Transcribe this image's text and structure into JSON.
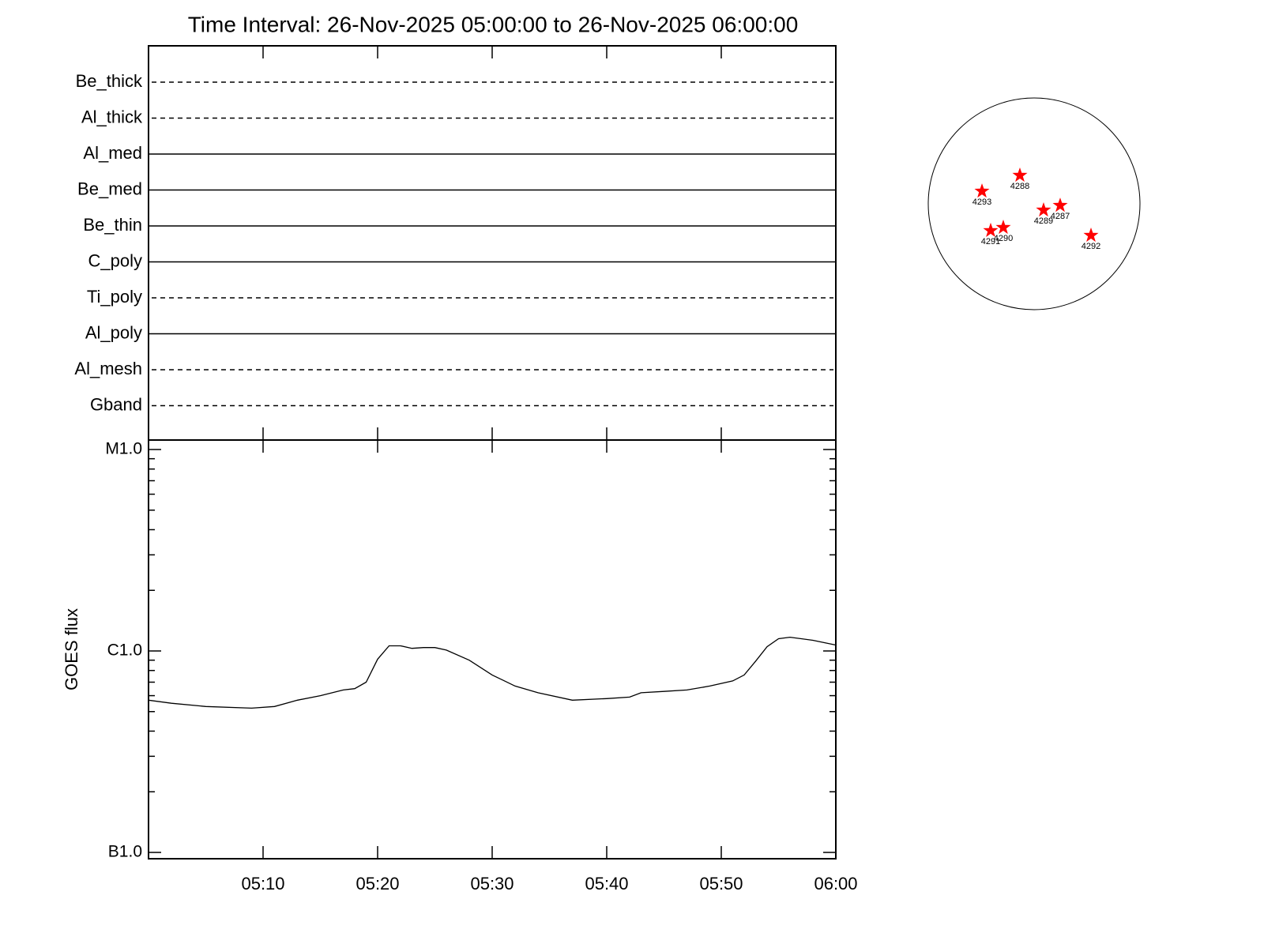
{
  "chart_data": [
    {
      "type": "timeline",
      "title": "Time Interval: 26-Nov-2025 05:00:00 to 26-Nov-2025 06:00:00",
      "categories": [
        "Be_thick",
        "Al_thick",
        "Al_med",
        "Be_med",
        "Be_thin",
        "C_poly",
        "Ti_poly",
        "Al_poly",
        "Al_mesh",
        "Gband"
      ],
      "styles": [
        "dashed",
        "dashed",
        "solid",
        "solid",
        "solid",
        "solid",
        "dashed",
        "solid",
        "dashed",
        "dashed"
      ]
    },
    {
      "type": "line",
      "ylabel": "GOES flux",
      "log": true,
      "color": "#000000",
      "x": [
        "05:00",
        "05:02",
        "05:05",
        "05:09",
        "05:11",
        "05:13",
        "05:15",
        "05:17",
        "05:18",
        "05:19",
        "05:20",
        "05:21",
        "05:22",
        "05:23",
        "05:24",
        "05:25",
        "05:26",
        "05:28",
        "05:30",
        "05:32",
        "05:34",
        "05:37",
        "05:40",
        "05:42",
        "05:43",
        "05:45",
        "05:47",
        "05:49",
        "05:51",
        "05:52",
        "05:53",
        "05:54",
        "05:55",
        "05:56",
        "05:58",
        "06:00"
      ],
      "values": [
        5.7e-07,
        5.5e-07,
        5.3e-07,
        5.2e-07,
        5.3e-07,
        5.7e-07,
        6e-07,
        6.4e-07,
        6.5e-07,
        7e-07,
        9.1e-07,
        1.06e-06,
        1.06e-06,
        1.03e-06,
        1.04e-06,
        1.04e-06,
        1.01e-06,
        9e-07,
        7.6e-07,
        6.7e-07,
        6.2e-07,
        5.7e-07,
        5.8e-07,
        5.9e-07,
        6.2e-07,
        6.3e-07,
        6.4e-07,
        6.7e-07,
        7.1e-07,
        7.6e-07,
        8.9e-07,
        1.05e-06,
        1.15e-06,
        1.17e-06,
        1.13e-06,
        1.07e-06
      ],
      "xlim": [
        "05:00",
        "06:00"
      ],
      "xticks": [
        "05:10",
        "05:20",
        "05:30",
        "05:40",
        "05:50",
        "06:00"
      ],
      "ylim": [
        1e-07,
        1e-05
      ],
      "yticks": [
        {
          "value": 1e-07,
          "label": "B1.0"
        },
        {
          "value": 1e-06,
          "label": "C1.0"
        },
        {
          "value": 1e-05,
          "label": "M1.0"
        }
      ],
      "yminor": [
        2e-07,
        3e-07,
        4e-07,
        5e-07,
        6e-07,
        7e-07,
        8e-07,
        9e-07,
        2e-06,
        3e-06,
        4e-06,
        5e-06,
        6e-06,
        7e-06,
        8e-06,
        9e-06
      ]
    },
    {
      "type": "scatter",
      "color": "#ff0000",
      "xlim": [
        -975,
        975
      ],
      "ylim": [
        -975,
        975
      ],
      "points": [
        {
          "label": "4288",
          "x": -131,
          "y": 262
        },
        {
          "label": "4293",
          "x": -480,
          "y": 116
        },
        {
          "label": "4289",
          "x": 87,
          "y": -58
        },
        {
          "label": "4287",
          "x": 240,
          "y": -15
        },
        {
          "label": "4291",
          "x": -400,
          "y": -247
        },
        {
          "label": "4290",
          "x": -284,
          "y": -218
        },
        {
          "label": "4292",
          "x": 524,
          "y": -291
        }
      ]
    }
  ]
}
